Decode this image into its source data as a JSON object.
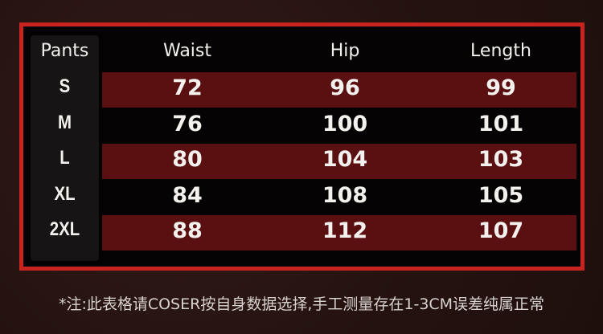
{
  "table": {
    "columns": [
      "Pants",
      "Waist",
      "Hip",
      "Length"
    ],
    "rows": [
      {
        "size": "S",
        "waist": "72",
        "hip": "96",
        "length": "99"
      },
      {
        "size": "M",
        "waist": "76",
        "hip": "100",
        "length": "101"
      },
      {
        "size": "L",
        "waist": "80",
        "hip": "104",
        "length": "103"
      },
      {
        "size": "XL",
        "waist": "84",
        "hip": "108",
        "length": "105"
      },
      {
        "size": "2XL",
        "waist": "88",
        "hip": "112",
        "length": "107"
      }
    ]
  },
  "footnote": "*注:此表格请COSER按自身数据选择,手工测量存在1-3CM误差纯属正常",
  "colors": {
    "border": "#c8231f",
    "stripe": "#5a1011",
    "background": "#050303"
  }
}
